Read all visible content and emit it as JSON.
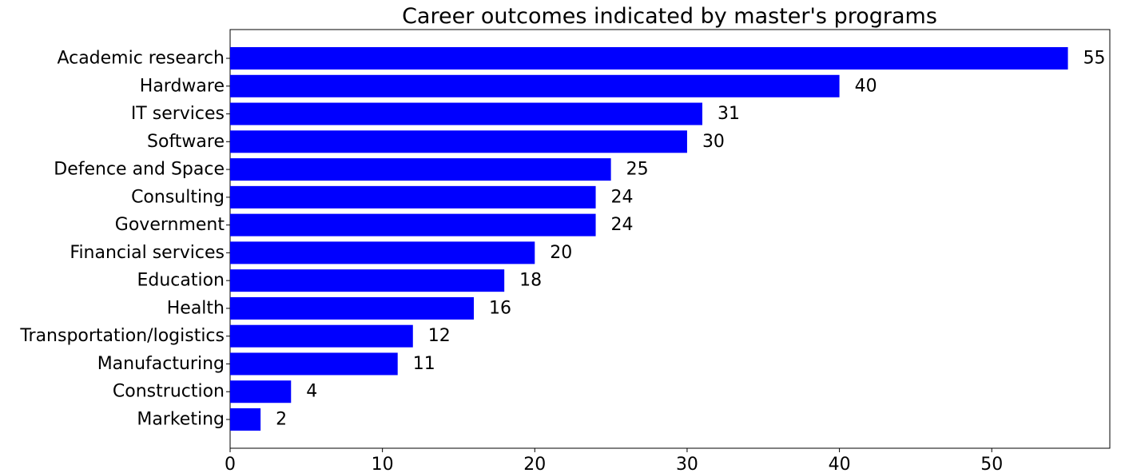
{
  "chart_data": {
    "type": "bar",
    "orientation": "horizontal",
    "title": "Career outcomes indicated by master's programs",
    "xlabel": "",
    "ylabel": "",
    "categories": [
      "Academic research",
      "Hardware",
      "IT services",
      "Software",
      "Defence and Space",
      "Consulting",
      "Government",
      "Financial services",
      "Education",
      "Health",
      "Transportation/logistics",
      "Manufacturing",
      "Construction",
      "Marketing"
    ],
    "values": [
      55,
      40,
      31,
      30,
      25,
      24,
      24,
      20,
      18,
      16,
      12,
      11,
      4,
      2
    ],
    "xlim": [
      0,
      57.75
    ],
    "xticks": [
      0,
      10,
      20,
      30,
      40,
      50
    ],
    "bar_color": "#0000ff",
    "grid": false,
    "legend": "none"
  }
}
